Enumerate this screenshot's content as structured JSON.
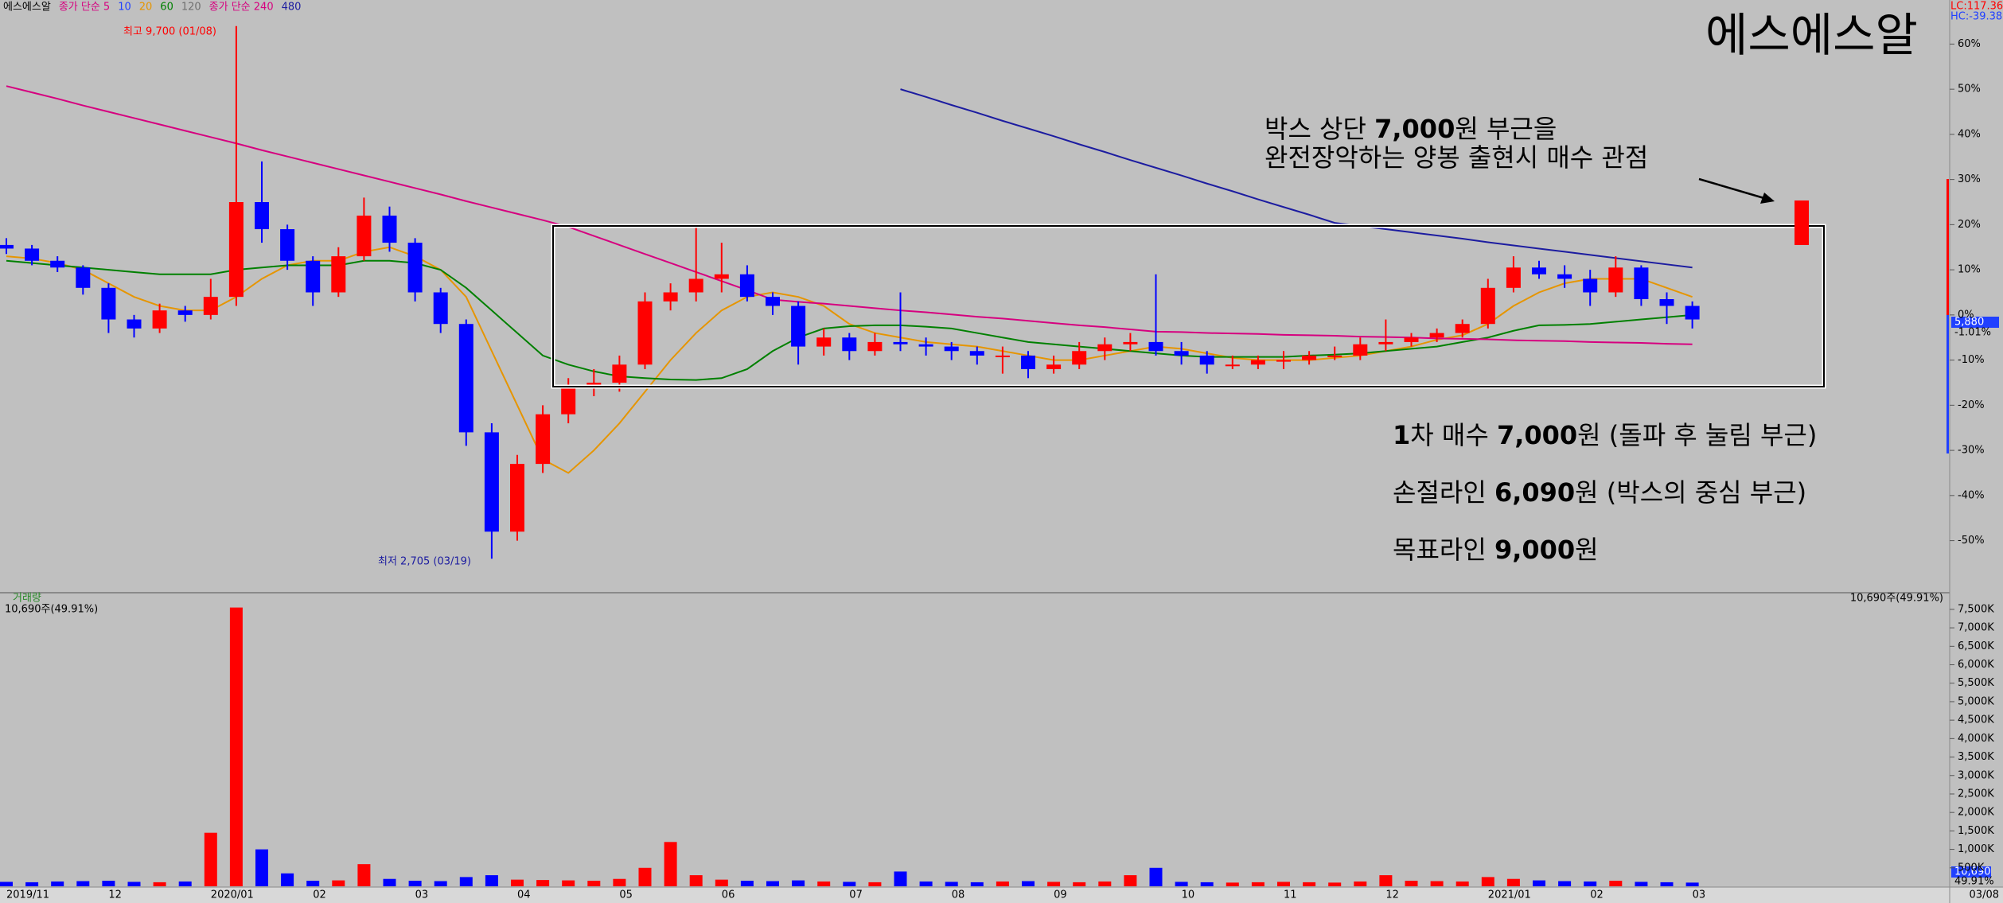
{
  "legend": [
    {
      "text": "에스에스알",
      "color": "#000000"
    },
    {
      "text": "종가 단순 5",
      "color": "#d6007f"
    },
    {
      "text": "10",
      "color": "#2040ff"
    },
    {
      "text": "20",
      "color": "#e69500"
    },
    {
      "text": "60",
      "color": "#008000"
    },
    {
      "text": "120",
      "color": "#707070"
    },
    {
      "text": "종가 단순 240",
      "color": "#d6007f"
    },
    {
      "text": "480",
      "color": "#1c1ca0"
    }
  ],
  "labels": {
    "lc": "LC:117.36",
    "hc": "HC:-39.38",
    "high": "최고 9,700 (01/08)",
    "low": "최저 2,705 (03/19)",
    "last_price": "5,880",
    "last_change": "-1.01%",
    "volume_title": "거래량",
    "volume_info": "10,690주(49.91%)",
    "last_volume": "10,690",
    "last_volume_share": "49.91%",
    "last_date": "03/08"
  },
  "annotations": {
    "headline": "에스에스알",
    "note_lines": [
      [
        {
          "text": "박스 상단 "
        },
        {
          "text": "7,000",
          "bold": true
        },
        {
          "text": "원 부근을"
        }
      ],
      [
        {
          "text": "완전장악하는 양봉 출현시 매수 관점"
        }
      ]
    ],
    "plan_lines": [
      [
        {
          "text": "1",
          "bold": true
        },
        {
          "text": "차 매수 "
        },
        {
          "text": "7,000",
          "bold": true
        },
        {
          "text": "원 (돌파 후 눌림 부근)"
        }
      ],
      [
        {
          "text": "손절라인 "
        },
        {
          "text": "6,090",
          "bold": true
        },
        {
          "text": "원 (박스의 중심 부근)"
        }
      ],
      [
        {
          "text": "목표라인 "
        },
        {
          "text": "9,000",
          "bold": true
        },
        {
          "text": "원"
        }
      ]
    ]
  },
  "chart_data": {
    "type": "candlestick",
    "categories": [
      "2019/11",
      null,
      null,
      null,
      "12",
      null,
      null,
      null,
      "2020/01",
      null,
      null,
      null,
      "02",
      null,
      null,
      null,
      "03",
      null,
      null,
      null,
      "04",
      null,
      null,
      null,
      "05",
      null,
      null,
      null,
      "06",
      null,
      null,
      null,
      null,
      "07",
      null,
      null,
      null,
      "08",
      null,
      null,
      null,
      "09",
      null,
      null,
      null,
      null,
      "10",
      null,
      null,
      null,
      "11",
      null,
      null,
      null,
      "12",
      null,
      null,
      null,
      "2021/01",
      null,
      null,
      null,
      "02",
      null,
      null,
      null,
      "03"
    ],
    "open": [
      15.5,
      14.7,
      12,
      10.5,
      6,
      -1,
      -3,
      1,
      0,
      4,
      25,
      19,
      12,
      5,
      13,
      22,
      16,
      5,
      -2,
      -26,
      -48,
      -33,
      -22,
      -16,
      -15,
      -11,
      3,
      5,
      8,
      9,
      4,
      2,
      -7,
      -5,
      -8,
      -6,
      -6.5,
      -7,
      -8,
      -9,
      -9,
      -12,
      -11,
      -8,
      -6.5,
      -6,
      -8,
      -9,
      -11,
      -11,
      -10,
      -10,
      -9,
      -9,
      -6.5,
      -6,
      -5,
      -4,
      -2,
      6,
      10.5,
      9,
      8,
      5,
      10.5,
      3.5,
      2
    ],
    "high": [
      17,
      15.5,
      13,
      11,
      7,
      0,
      2.5,
      2,
      8,
      64,
      34,
      20,
      13,
      15,
      26,
      24,
      17,
      6,
      -1,
      -24,
      -31,
      -20,
      -14,
      -12,
      -9,
      5,
      7,
      19.5,
      16,
      11,
      5,
      3,
      -3,
      -4,
      -4,
      5,
      -5,
      -6,
      -7,
      -7,
      -8,
      -9,
      -6,
      -5,
      -4,
      9,
      -6,
      -8,
      -9,
      -9,
      -8,
      -8,
      -7,
      -5,
      -1,
      -4,
      -3,
      -1,
      8,
      13,
      12,
      11,
      10,
      13,
      11,
      5,
      3
    ],
    "low": [
      13.5,
      11,
      9.5,
      4.5,
      -4,
      -5,
      -4,
      -1.5,
      -1,
      2,
      16,
      10,
      2,
      4,
      12,
      14,
      3,
      -4,
      -29,
      -54,
      -50,
      -35,
      -24,
      -18,
      -17,
      -12,
      1,
      3,
      5,
      3,
      0,
      -11,
      -9,
      -10,
      -9,
      -8,
      -9,
      -10,
      -11,
      -13,
      -14,
      -13,
      -12,
      -10,
      -8,
      -9,
      -11,
      -13,
      -12,
      -12,
      -12,
      -11,
      -10,
      -10,
      -8,
      -7,
      -6,
      -5,
      -3,
      5,
      8,
      6,
      2,
      4,
      2,
      -2,
      -3
    ],
    "close": [
      14.7,
      12,
      10.5,
      6,
      -1,
      -3,
      1,
      0,
      4,
      25,
      19,
      12,
      5,
      13,
      22,
      16,
      5,
      -2,
      -26,
      -48,
      -33,
      -22,
      -16,
      -15,
      -11,
      3,
      5,
      8,
      9,
      4,
      2,
      -7,
      -5,
      -8,
      -6,
      -6.5,
      -7,
      -8,
      -9,
      -9,
      -12,
      -11,
      -8,
      -6.5,
      -6,
      -8,
      -9,
      -11,
      -11,
      -10,
      -10,
      -9,
      -9,
      -6.5,
      -6,
      -5,
      -4,
      -2,
      6,
      10.5,
      9,
      8,
      5,
      10.5,
      3.5,
      2,
      -1
    ],
    "up_color": "#ff0000",
    "down_color": "#0000ff",
    "ylim": [
      -61,
      68
    ],
    "yticks": [
      {
        "value": 60,
        "label": "60%"
      },
      {
        "value": 50,
        "label": "50%"
      },
      {
        "value": 40,
        "label": "40%"
      },
      {
        "value": 30,
        "label": "30%"
      },
      {
        "value": 20,
        "label": "20%"
      },
      {
        "value": 10,
        "label": "10%"
      },
      {
        "value": 0,
        "label": "0%"
      },
      {
        "value": -10,
        "label": "-10%"
      },
      {
        "value": -20,
        "label": "-20%"
      },
      {
        "value": -30,
        "label": "-30%"
      },
      {
        "value": -40,
        "label": "-40%"
      },
      {
        "value": -50,
        "label": "-50%"
      }
    ],
    "series": [
      {
        "color": "#e69500",
        "values": [
          13,
          12.5,
          11.5,
          10,
          7,
          4,
          2,
          1,
          1,
          4,
          8,
          11,
          12,
          12,
          14,
          15,
          13,
          10,
          4,
          -8,
          -20,
          -32,
          -35,
          -30,
          -24,
          -17,
          -10,
          -4,
          1,
          4,
          5,
          4,
          2,
          -2,
          -4,
          -5,
          -6,
          -6.5,
          -7,
          -8,
          -9,
          -10,
          -10,
          -9,
          -8,
          -7,
          -7.5,
          -8.5,
          -9.5,
          -10,
          -10,
          -10,
          -9.5,
          -9,
          -8,
          -7,
          -5.5,
          -4.5,
          -2,
          2,
          5,
          7,
          8,
          8,
          8,
          6,
          4
        ]
      },
      {
        "color": "#008000",
        "values": [
          12,
          11.5,
          11,
          10.5,
          10,
          9.5,
          9,
          9,
          9,
          10,
          10.5,
          11,
          11,
          11,
          12,
          12,
          11.5,
          10,
          6,
          1,
          -4,
          -9,
          -11,
          -12.5,
          -13.6,
          -14,
          -14.3,
          -14.4,
          -14,
          -12,
          -8,
          -5,
          -3,
          -2.5,
          -2.3,
          -2.3,
          -2.6,
          -3,
          -4,
          -5,
          -6,
          -6.5,
          -7,
          -7.5,
          -8,
          -8.5,
          -9,
          -9.3,
          -9.3,
          -9.3,
          -9.3,
          -9,
          -8.8,
          -8.5,
          -8,
          -7.5,
          -7,
          -6,
          -5,
          -3.5,
          -2.3,
          -2.2,
          -2,
          -1.5,
          -1,
          -0.5,
          0
        ]
      },
      {
        "color": "#d6007f",
        "values": [
          50.7,
          49.3,
          47.9,
          46.4,
          45,
          43.6,
          42.2,
          40.8,
          39.4,
          38,
          36.5,
          35.1,
          33.7,
          32.3,
          30.9,
          29.5,
          28.1,
          26.7,
          25.2,
          23.8,
          22.4,
          21,
          19.5,
          17.5,
          15.5,
          13.5,
          11.5,
          9.5,
          7.5,
          5.5,
          3.4,
          2.9,
          2.5,
          2,
          1.5,
          1,
          0.6,
          0.1,
          -0.4,
          -0.8,
          -1.3,
          -1.8,
          -2.3,
          -2.7,
          -3.2,
          -3.7,
          -3.8,
          -4,
          -4.1,
          -4.2,
          -4.4,
          -4.5,
          -4.6,
          -4.8,
          -4.9,
          -5,
          -5.2,
          -5.3,
          -5.4,
          -5.6,
          -5.7,
          -5.8,
          -6,
          -6.1,
          -6.2,
          -6.4,
          -6.5
        ]
      },
      {
        "color": "#1c1ca0",
        "values": [
          null,
          null,
          null,
          null,
          null,
          null,
          null,
          null,
          null,
          null,
          null,
          null,
          null,
          null,
          null,
          null,
          null,
          null,
          null,
          null,
          null,
          null,
          null,
          null,
          null,
          null,
          null,
          null,
          null,
          null,
          null,
          null,
          null,
          null,
          null,
          50,
          48.3,
          46.5,
          44.8,
          43,
          41.3,
          39.6,
          37.8,
          36.1,
          34.3,
          32.6,
          30.9,
          29.1,
          27.4,
          25.6,
          23.9,
          22.2,
          20.4,
          19.7,
          19,
          18.3,
          17.6,
          16.9,
          16.1,
          15.4,
          14.7,
          14,
          13.3,
          12.6,
          11.9,
          11.2,
          10.5
        ]
      }
    ],
    "volume": {
      "values": [
        120,
        110,
        130,
        140,
        150,
        120,
        110,
        130,
        1450,
        7550,
        1000,
        350,
        150,
        160,
        600,
        200,
        150,
        140,
        250,
        300,
        180,
        170,
        160,
        150,
        200,
        500,
        1200,
        300,
        180,
        150,
        140,
        160,
        130,
        120,
        110,
        400,
        130,
        120,
        110,
        130,
        140,
        120,
        110,
        130,
        300,
        500,
        120,
        110,
        100,
        110,
        120,
        110,
        100,
        130,
        300,
        150,
        140,
        130,
        250,
        200,
        160,
        140,
        130,
        150,
        120,
        110,
        100
      ],
      "ylim": [
        0,
        7800
      ],
      "yticks": [
        {
          "value": 500,
          "label": "500K"
        },
        {
          "value": 1000,
          "label": "1,000K"
        },
        {
          "value": 1500,
          "label": "1,500K"
        },
        {
          "value": 2000,
          "label": "2,000K"
        },
        {
          "value": 2500,
          "label": "2,500K"
        },
        {
          "value": 3000,
          "label": "3,000K"
        },
        {
          "value": 3500,
          "label": "3,500K"
        },
        {
          "value": 4000,
          "label": "4,000K"
        },
        {
          "value": 4500,
          "label": "4,500K"
        },
        {
          "value": 5000,
          "label": "5,000K"
        },
        {
          "value": 5500,
          "label": "5,500K"
        },
        {
          "value": 6000,
          "label": "6,000K"
        },
        {
          "value": 6500,
          "label": "6,500K"
        },
        {
          "value": 7000,
          "label": "7,000K"
        },
        {
          "value": 7500,
          "label": "7,500K"
        }
      ]
    }
  }
}
